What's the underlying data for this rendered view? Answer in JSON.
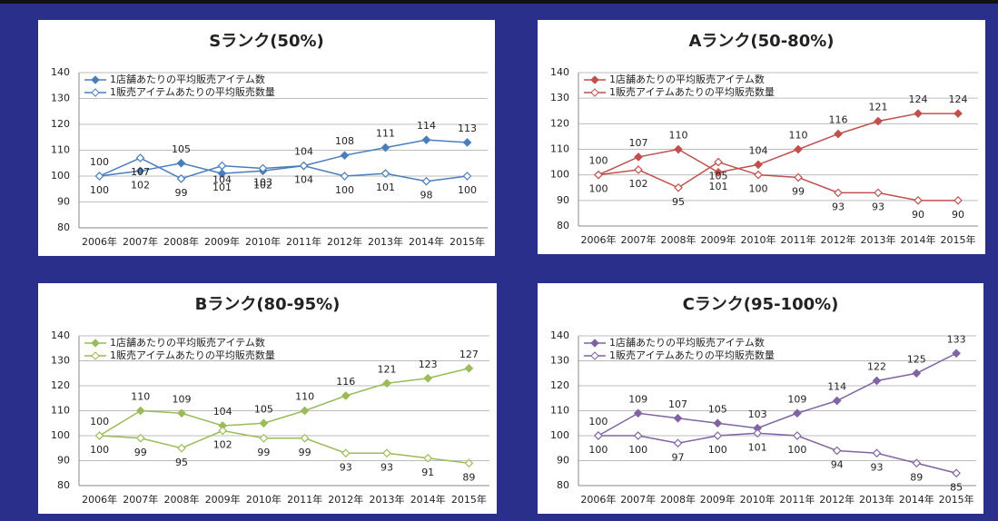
{
  "chart_data": [
    {
      "type": "line",
      "title": "Sランク(50%)",
      "categories": [
        "2006年",
        "2007年",
        "2008年",
        "2009年",
        "2010年",
        "2011年",
        "2012年",
        "2013年",
        "2014年",
        "2015年"
      ],
      "series": [
        {
          "name": "1店舗あたりの平均販売アイテム数",
          "color": "#4a7ebb",
          "values": [
            100,
            102,
            105,
            101,
            102,
            104,
            108,
            111,
            114,
            113
          ]
        },
        {
          "name": "1販売アイテムあたりの平均販売数量",
          "color": "#4a7ebb",
          "values": [
            100,
            107,
            99,
            104,
            103,
            104,
            100,
            101,
            98,
            100
          ]
        }
      ],
      "ylim": [
        80,
        140
      ],
      "yticks": [
        80,
        90,
        100,
        110,
        120,
        130,
        140
      ],
      "grid": true,
      "legend": "top-left"
    },
    {
      "type": "line",
      "title": "Aランク(50-80%)",
      "categories": [
        "2006年",
        "2007年",
        "2008年",
        "2009年",
        "2010年",
        "2011年",
        "2012年",
        "2013年",
        "2014年",
        "2015年"
      ],
      "series": [
        {
          "name": "1店舗あたりの平均販売アイテム数",
          "color": "#c0504d",
          "values": [
            100,
            107,
            110,
            101,
            104,
            110,
            116,
            121,
            124,
            124
          ]
        },
        {
          "name": "1販売アイテムあたりの平均販売数量",
          "color": "#c0504d",
          "values": [
            100,
            102,
            95,
            105,
            100,
            99,
            93,
            93,
            90,
            90
          ]
        }
      ],
      "ylim": [
        80,
        140
      ],
      "yticks": [
        80,
        90,
        100,
        110,
        120,
        130,
        140
      ],
      "grid": true,
      "legend": "top-left"
    },
    {
      "type": "line",
      "title": "Bランク(80-95%)",
      "categories": [
        "2006年",
        "2007年",
        "2008年",
        "2009年",
        "2010年",
        "2011年",
        "2012年",
        "2013年",
        "2014年",
        "2015年"
      ],
      "series": [
        {
          "name": "1店舗あたりの平均販売アイテム数",
          "color": "#9bbb59",
          "values": [
            100,
            110,
            109,
            104,
            105,
            110,
            116,
            121,
            123,
            127
          ]
        },
        {
          "name": "1販売アイテムあたりの平均販売数量",
          "color": "#9bbb59",
          "values": [
            100,
            99,
            95,
            102,
            99,
            99,
            93,
            93,
            91,
            89
          ]
        }
      ],
      "ylim": [
        80,
        140
      ],
      "yticks": [
        80,
        90,
        100,
        110,
        120,
        130,
        140
      ],
      "grid": true,
      "legend": "top-left"
    },
    {
      "type": "line",
      "title": "Cランク(95-100%)",
      "categories": [
        "2006年",
        "2007年",
        "2008年",
        "2009年",
        "2010年",
        "2011年",
        "2012年",
        "2013年",
        "2014年",
        "2015年"
      ],
      "series": [
        {
          "name": "1店舗あたりの平均販売アイテム数",
          "color": "#8064a2",
          "values": [
            100,
            109,
            107,
            105,
            103,
            109,
            114,
            122,
            125,
            133
          ]
        },
        {
          "name": "1販売アイテムあたりの平均販売数量",
          "color": "#8064a2",
          "values": [
            100,
            100,
            97,
            100,
            101,
            100,
            94,
            93,
            89,
            85
          ]
        }
      ],
      "ylim": [
        80,
        140
      ],
      "yticks": [
        80,
        90,
        100,
        110,
        120,
        130,
        140
      ],
      "grid": true,
      "legend": "top-left"
    }
  ]
}
